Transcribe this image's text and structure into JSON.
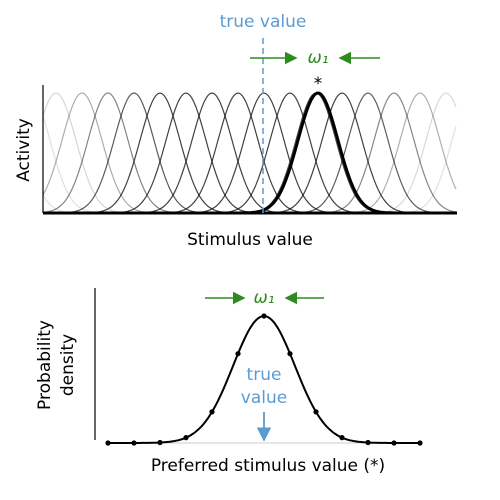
{
  "top_panel": {
    "true_value_label": "true value",
    "width_label": "ω₁",
    "peak_marker": "*",
    "y_label": "Activity",
    "x_label": "Stimulus value"
  },
  "bottom_panel": {
    "width_label": "ω₁",
    "true_value_lines": [
      "true",
      "value"
    ],
    "y_label_lines": [
      "Probability",
      "density"
    ],
    "x_label": "Preferred stimulus value (*)"
  }
}
